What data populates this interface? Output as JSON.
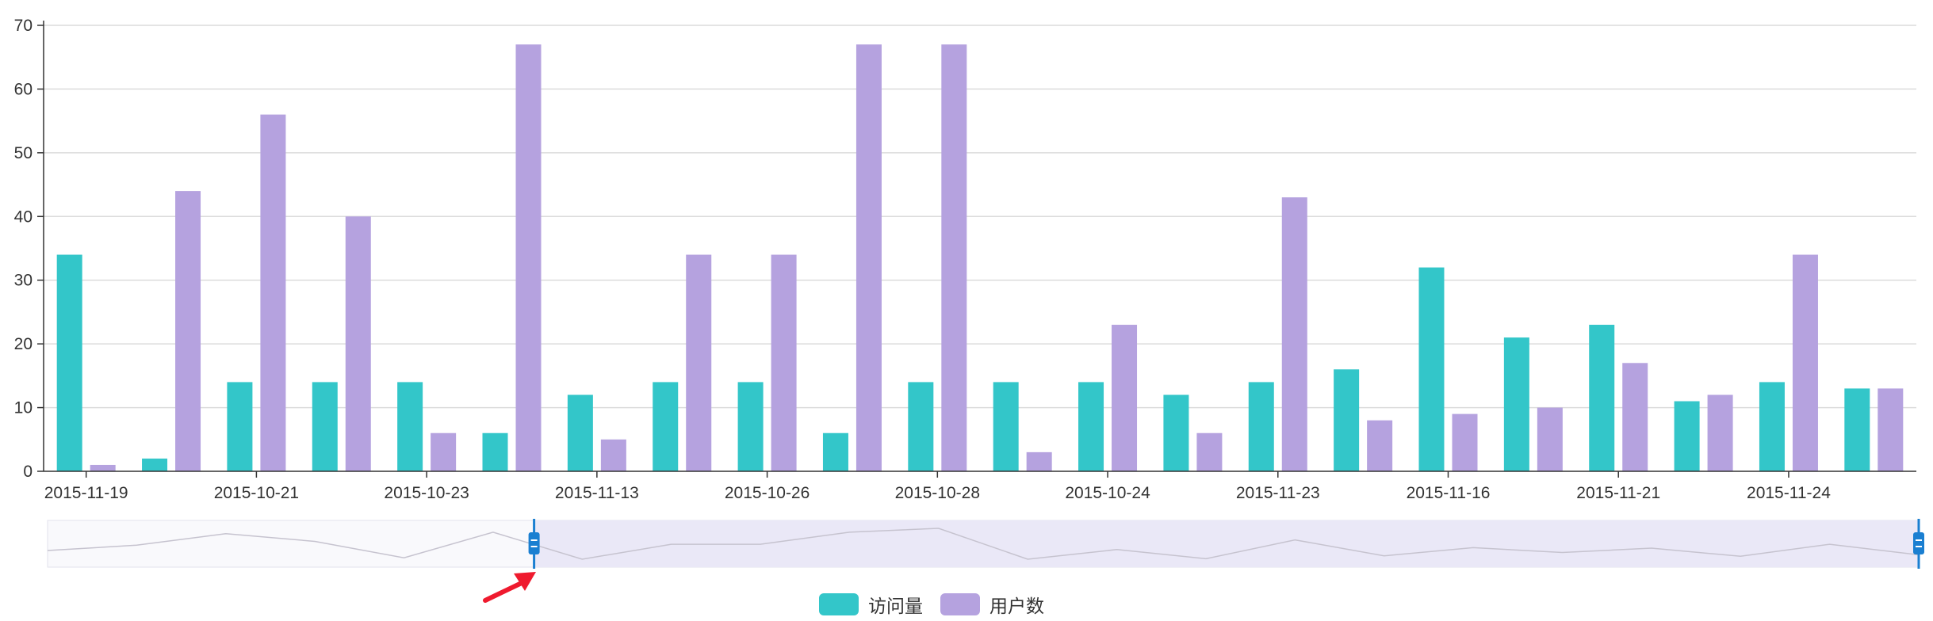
{
  "chart_data": {
    "type": "bar",
    "y_axis": {
      "min": 0,
      "max": 70,
      "interval": 10,
      "ticks": [
        "0",
        "10",
        "20",
        "30",
        "40",
        "50",
        "60",
        "70"
      ]
    },
    "x_axis_tick_labels": [
      "2015-11-19",
      "2015-10-21",
      "2015-10-23",
      "2015-11-13",
      "2015-10-26",
      "2015-10-28",
      "2015-10-24",
      "2015-11-23",
      "2015-11-16",
      "2015-11-21",
      "2015-11-24"
    ],
    "series": [
      {
        "name": "访问量",
        "color": "#33c6c9",
        "values": [
          34,
          2,
          14,
          14,
          14,
          6,
          12,
          14,
          14,
          6,
          14,
          14,
          14,
          12,
          14,
          16,
          32,
          21,
          23,
          11,
          14,
          13
        ]
      },
      {
        "name": "用户数",
        "color": "#b5a2df",
        "values": [
          1,
          44,
          56,
          40,
          6,
          67,
          5,
          34,
          34,
          67,
          67,
          3,
          23,
          6,
          43,
          8,
          9,
          10,
          17,
          12,
          34,
          13
        ]
      }
    ],
    "grid": true,
    "legend_position": "bottom-center",
    "data_zoom": {
      "type": "slider",
      "start_fraction": 0.26,
      "end_fraction": 1.0,
      "colors": {
        "selected_fill": "#eae8f7",
        "handle": "#1a7fd1",
        "shadow_line": "#c6c3cf"
      }
    },
    "annotation": {
      "type": "arrow",
      "color": "#ef1a2e",
      "points_to": "data-zoom-start-handle"
    }
  }
}
